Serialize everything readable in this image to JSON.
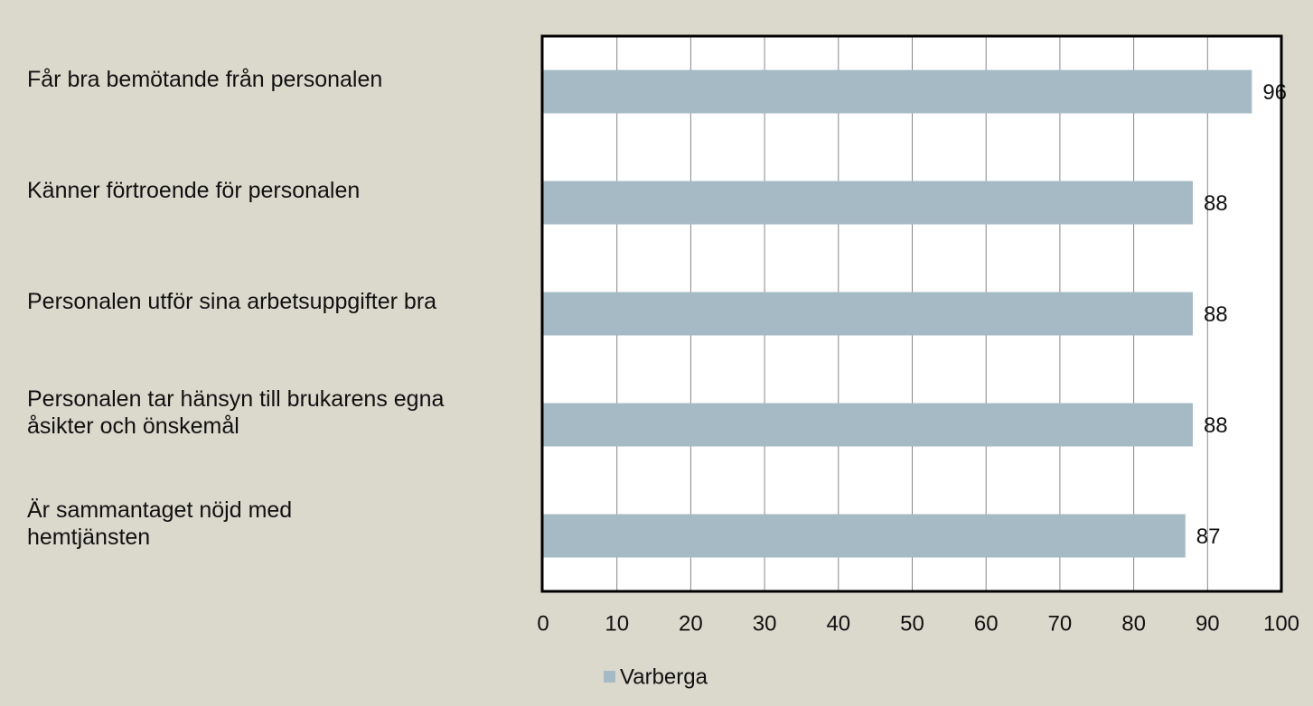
{
  "chart_data": {
    "type": "bar",
    "orientation": "horizontal",
    "categories": [
      "Får bra bemötande från personalen",
      "Känner förtroende för personalen",
      "Personalen utför sina arbetsuppgifter bra",
      "Personalen tar hänsyn till brukarens egna åsikter och önskemål",
      "Är sammantaget nöjd med hemtjänsten"
    ],
    "series": [
      {
        "name": "Varberga",
        "color": "#a6bac5",
        "values": [
          96,
          88,
          88,
          88,
          87
        ]
      }
    ],
    "xlim": [
      0,
      100
    ],
    "xticks": [
      0,
      10,
      20,
      30,
      40,
      50,
      60,
      70,
      80,
      90,
      100
    ],
    "grid": true,
    "legend": "bottom"
  }
}
